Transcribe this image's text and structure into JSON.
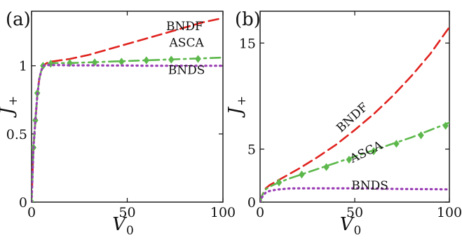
{
  "chart_data": [
    {
      "type": "line",
      "panel_label": "(a)",
      "ylabel": "J",
      "ylabel_sub": "+",
      "xlabel": "V",
      "xlabel_sub": "0",
      "xlim": [
        0,
        100
      ],
      "ylim": [
        0,
        1.4
      ],
      "xticks": [
        0,
        50,
        100
      ],
      "xtick_labels": [
        "0",
        "50",
        "100"
      ],
      "yticks": [
        0,
        0.5,
        1
      ],
      "ytick_labels": [
        "0",
        "0.5",
        "1"
      ],
      "grid": false,
      "series": [
        {
          "name": "BNDF",
          "color": "#e0231f",
          "dash": "dashed",
          "x": [
            0,
            0.5,
            1,
            2,
            3,
            4,
            5,
            6,
            8,
            10,
            15,
            20,
            30,
            40,
            50,
            60,
            70,
            80,
            90,
            100
          ],
          "y": [
            0,
            0.2,
            0.4,
            0.6,
            0.78,
            0.9,
            0.96,
            1.0,
            1.02,
            1.03,
            1.04,
            1.05,
            1.08,
            1.12,
            1.16,
            1.2,
            1.24,
            1.28,
            1.32,
            1.35
          ]
        },
        {
          "name": "ASCA",
          "color": "#5db84c",
          "dash": "dashdot",
          "marker": "diamond",
          "x": [
            0,
            0.5,
            1,
            2,
            3,
            4,
            5,
            6,
            8,
            10,
            15,
            20,
            30,
            40,
            50,
            60,
            70,
            80,
            90,
            100
          ],
          "y": [
            0,
            0.2,
            0.4,
            0.6,
            0.78,
            0.9,
            0.96,
            1.0,
            1.01,
            1.02,
            1.02,
            1.02,
            1.025,
            1.03,
            1.035,
            1.04,
            1.045,
            1.05,
            1.055,
            1.06
          ],
          "marker_x": [
            0,
            1,
            2,
            3,
            6,
            10,
            20,
            33,
            47,
            60,
            73,
            87
          ],
          "marker_y": [
            0,
            0.4,
            0.6,
            0.8,
            1.0,
            1.015,
            1.02,
            1.025,
            1.03,
            1.04,
            1.045,
            1.05
          ]
        },
        {
          "name": "BNDS",
          "color": "#9b3fb5",
          "dash": "dotted",
          "x": [
            0,
            0.5,
            1,
            2,
            3,
            4,
            5,
            6,
            8,
            10,
            15,
            20,
            30,
            40,
            50,
            60,
            70,
            80,
            90,
            100
          ],
          "y": [
            0,
            0.2,
            0.4,
            0.6,
            0.78,
            0.9,
            0.96,
            1.0,
            1.005,
            1.005,
            1.005,
            1.003,
            1.003,
            1.002,
            1.002,
            1.0,
            1.0,
            1.0,
            1.0,
            1.0
          ]
        }
      ],
      "annotations": [
        {
          "text": "BNDF",
          "x": 80,
          "y": 1.26
        },
        {
          "text": "ASCA",
          "x": 81,
          "y": 1.14
        },
        {
          "text": "BNDS",
          "x": 81,
          "y": 0.94
        }
      ]
    },
    {
      "type": "line",
      "panel_label": "(b)",
      "ylabel": "J",
      "ylabel_sub": "+",
      "xlabel": "V",
      "xlabel_sub": "0",
      "xlim": [
        0,
        100
      ],
      "ylim": [
        0,
        18
      ],
      "xticks": [
        0,
        50,
        100
      ],
      "xtick_labels": [
        "0",
        "50",
        "100"
      ],
      "yticks": [
        0,
        5,
        15
      ],
      "ytick_labels": [
        "0",
        "5",
        "15"
      ],
      "grid": false,
      "series": [
        {
          "name": "BNDF",
          "color": "#e0231f",
          "dash": "dashed",
          "x": [
            0,
            1,
            2,
            3,
            5,
            8,
            10,
            15,
            20,
            30,
            40,
            50,
            60,
            70,
            80,
            90,
            100
          ],
          "y": [
            0,
            0.6,
            1.0,
            1.3,
            1.6,
            1.9,
            2.1,
            2.6,
            3.1,
            4.2,
            5.4,
            6.8,
            8.3,
            10.0,
            11.9,
            14.0,
            16.5
          ]
        },
        {
          "name": "ASCA",
          "color": "#5db84c",
          "dash": "dashdot",
          "marker": "diamond",
          "x": [
            0,
            1,
            2,
            3,
            5,
            8,
            10,
            15,
            20,
            30,
            40,
            50,
            60,
            70,
            80,
            90,
            100
          ],
          "y": [
            0,
            0.6,
            0.95,
            1.2,
            1.45,
            1.7,
            1.85,
            2.2,
            2.5,
            3.1,
            3.7,
            4.3,
            4.9,
            5.5,
            6.1,
            6.8,
            7.5
          ],
          "marker_x": [
            0,
            10,
            22,
            35,
            47,
            60,
            72,
            85,
            98
          ],
          "marker_y": [
            0,
            1.85,
            2.6,
            3.3,
            4.0,
            4.8,
            5.5,
            6.3,
            7.2
          ]
        },
        {
          "name": "BNDS",
          "color": "#9b3fb5",
          "dash": "dotted",
          "x": [
            0,
            1,
            2,
            3,
            5,
            8,
            10,
            15,
            20,
            30,
            40,
            50,
            60,
            70,
            80,
            90,
            100
          ],
          "y": [
            0,
            0.45,
            0.7,
            0.9,
            1.05,
            1.15,
            1.2,
            1.28,
            1.3,
            1.3,
            1.3,
            1.3,
            1.28,
            1.25,
            1.23,
            1.22,
            1.2
          ]
        }
      ],
      "annotations": [
        {
          "text": "BNDF",
          "x": 50,
          "y": 7.7,
          "rotate": -42
        },
        {
          "text": "ASCA",
          "x": 57,
          "y": 4.4,
          "rotate": -26
        },
        {
          "text": "BNDS",
          "x": 58,
          "y": 1.2,
          "rotate": 0
        }
      ]
    }
  ]
}
